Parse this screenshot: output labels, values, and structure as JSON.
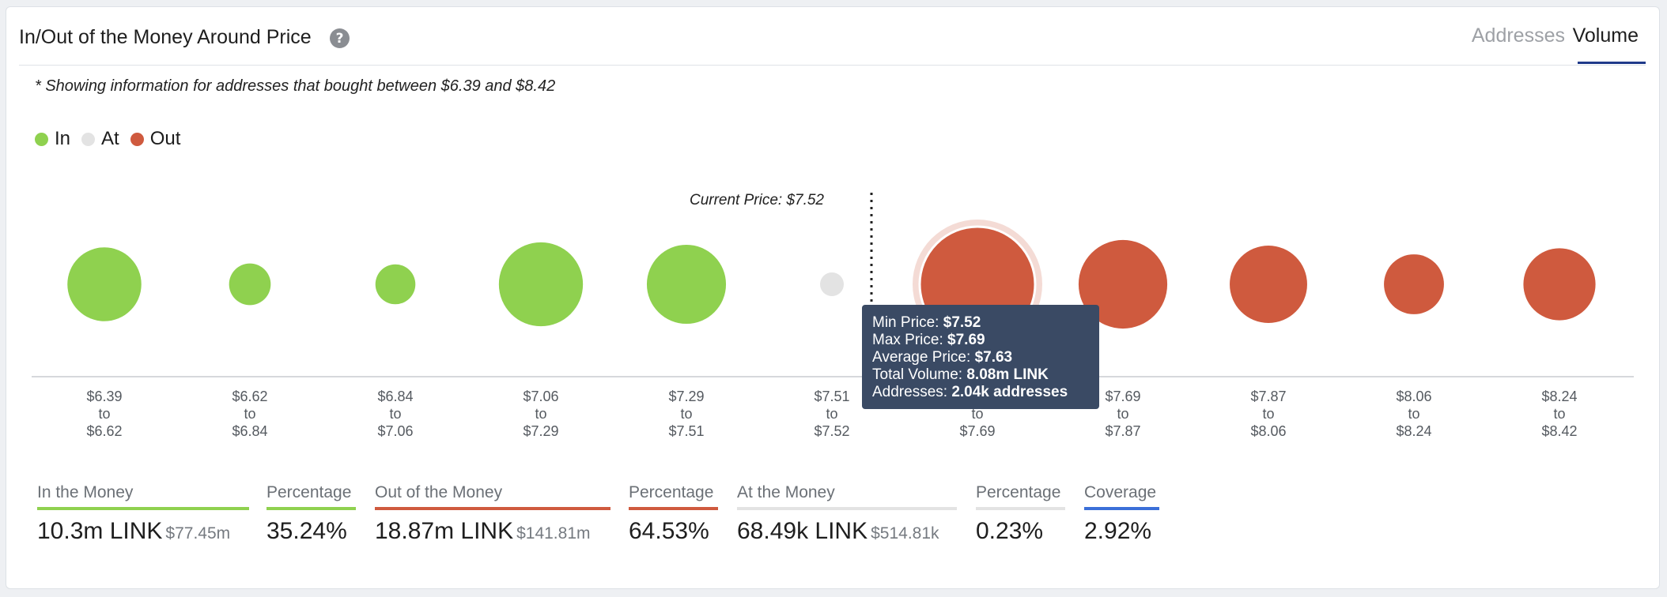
{
  "header": {
    "title": "In/Out of the Money Around Price",
    "tabs": [
      "Addresses",
      "Volume"
    ],
    "active_tab": "Volume"
  },
  "note": "* Showing information for addresses that bought between $6.39 and $8.42",
  "legend": [
    {
      "label": "In",
      "color": "#8fd14f"
    },
    {
      "label": "At",
      "color": "#e3e3e3"
    },
    {
      "label": "Out",
      "color": "#cf5a3e"
    }
  ],
  "chart_data": {
    "type": "bubble",
    "title": "In/Out of the Money Around Price",
    "current_price_label": "Current Price: $7.52",
    "current_price": 7.52,
    "colors": {
      "In": "#8fd14f",
      "At": "#e3e3e3",
      "Out": "#cf5a3e"
    },
    "bins": [
      {
        "from": "$6.39",
        "to": "$6.62",
        "status": "In",
        "relative_size": 0.41
      },
      {
        "from": "$6.62",
        "to": "$6.84",
        "status": "In",
        "relative_size": 0.13
      },
      {
        "from": "$6.84",
        "to": "$7.06",
        "status": "In",
        "relative_size": 0.12
      },
      {
        "from": "$7.06",
        "to": "$7.29",
        "status": "In",
        "relative_size": 0.53
      },
      {
        "from": "$7.29",
        "to": "$7.51",
        "status": "In",
        "relative_size": 0.47
      },
      {
        "from": "$7.51",
        "to": "$7.52",
        "status": "At",
        "relative_size": 0.04
      },
      {
        "from": "$7.52",
        "to": "$7.69",
        "status": "Out",
        "relative_size": 1.0,
        "highlighted": true
      },
      {
        "from": "$7.69",
        "to": "$7.87",
        "status": "Out",
        "relative_size": 0.59
      },
      {
        "from": "$7.87",
        "to": "$8.06",
        "status": "Out",
        "relative_size": 0.45
      },
      {
        "from": "$8.06",
        "to": "$8.24",
        "status": "Out",
        "relative_size": 0.27
      },
      {
        "from": "$8.24",
        "to": "$8.42",
        "status": "Out",
        "relative_size": 0.39
      }
    ],
    "to_word": "to"
  },
  "tooltip": {
    "rows": [
      {
        "label": "Min Price:",
        "value": "$7.52"
      },
      {
        "label": "Max Price:",
        "value": "$7.69"
      },
      {
        "label": "Average Price:",
        "value": "$7.63"
      },
      {
        "label": "Total Volume:",
        "value": "8.08m LINK"
      },
      {
        "label": "Addresses:",
        "value": "2.04k addresses"
      }
    ]
  },
  "stats": [
    {
      "label": "In the Money",
      "value": "10.3m LINK",
      "sub": "$77.45m",
      "color": "#8fd14f"
    },
    {
      "label": "Percentage",
      "value": "35.24%",
      "sub": "",
      "color": "#8fd14f"
    },
    {
      "label": "Out of the Money",
      "value": "18.87m LINK",
      "sub": "$141.81m",
      "color": "#cf5a3e"
    },
    {
      "label": "Percentage",
      "value": "64.53%",
      "sub": "",
      "color": "#cf5a3e"
    },
    {
      "label": "At the Money",
      "value": "68.49k LINK",
      "sub": "$514.81k",
      "color": "#e3e3e3"
    },
    {
      "label": "Percentage",
      "value": "0.23%",
      "sub": "",
      "color": "#e3e3e3"
    },
    {
      "label": "Coverage",
      "value": "2.92%",
      "sub": "",
      "color": "#3b6fd8"
    }
  ]
}
